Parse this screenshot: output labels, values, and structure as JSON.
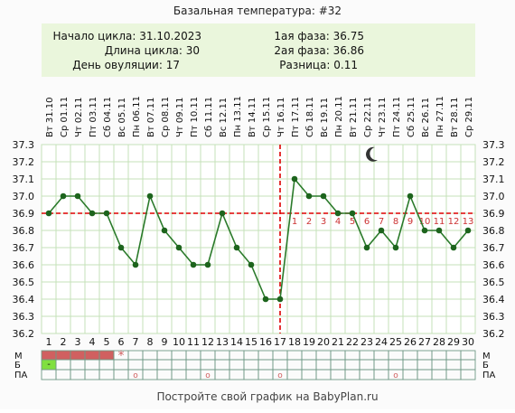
{
  "title": "Базальная температура: #32",
  "info": {
    "start_label": "Начало цикла:",
    "start_value": "31.10.2023",
    "length_label": "Длина цикла:",
    "length_value": "30",
    "ovulation_label": "День овуляции:",
    "ovulation_value": "17",
    "phase1_label": "1ая фаза:",
    "phase1_value": "36.75",
    "phase2_label": "2ая фаза:",
    "phase2_value": "36.86",
    "diff_label": "Разница:",
    "diff_value": "0.11"
  },
  "footer": "Постройте свой график на BabyPlan.ru",
  "colors": {
    "line": "#2a7a2a",
    "point": "#1d641d",
    "coverline": "#dd0000",
    "ovulation_line": "#dd0000",
    "menses": "#d06060",
    "discharge": "#80e040",
    "intercourse": "#d06060",
    "info_bg": "#eaf6dc",
    "grid": "#c4e2b8",
    "count_label": "#cc3333"
  },
  "chart_data": {
    "type": "line",
    "title": "Базальная температура: #32",
    "ylim": [
      36.2,
      37.3
    ],
    "y_ticks": [
      "37.3",
      "37.2",
      "37.1",
      "37.0",
      "36.9",
      "36.8",
      "36.7",
      "36.6",
      "36.5",
      "36.4",
      "36.3",
      "36.2"
    ],
    "days": [
      1,
      2,
      3,
      4,
      5,
      6,
      7,
      8,
      9,
      10,
      11,
      12,
      13,
      14,
      15,
      16,
      17,
      18,
      19,
      20,
      21,
      22,
      23,
      24,
      25,
      26,
      27,
      28,
      29,
      30
    ],
    "weekdays": [
      "Вт",
      "Ср",
      "Чт",
      "Пт",
      "Сб",
      "Вс",
      "Пн",
      "Вт",
      "Ср",
      "Чт",
      "Пт",
      "Сб",
      "Вс",
      "Пн",
      "Вт",
      "Ср",
      "Чт",
      "Пт",
      "Сб",
      "Вс",
      "Пн",
      "Вт",
      "Ср",
      "Чт",
      "Пт",
      "Сб",
      "Вс",
      "Пн",
      "Вт",
      "Ср"
    ],
    "dates": [
      "31.10",
      "01.11",
      "02.11",
      "03.11",
      "04.11",
      "05.11",
      "06.11",
      "07.11",
      "08.11",
      "09.11",
      "10.11",
      "11.11",
      "12.11",
      "13.11",
      "14.11",
      "15.11",
      "16.11",
      "17.11",
      "18.11",
      "19.11",
      "20.11",
      "21.11",
      "22.11",
      "23.11",
      "24.11",
      "25.11",
      "26.11",
      "27.11",
      "28.11",
      "29.11"
    ],
    "series": [
      {
        "values": [
          36.9,
          37.0,
          37.0,
          36.9,
          36.9,
          36.7,
          36.6,
          37.0,
          36.8,
          36.7,
          36.6,
          36.6,
          36.9,
          36.7,
          36.6,
          36.4,
          36.4,
          37.1,
          37.0,
          37.0,
          36.9,
          36.9,
          36.7,
          36.8,
          36.7,
          37.0,
          36.8,
          36.8,
          36.7,
          36.8
        ]
      }
    ],
    "coverline": 36.9,
    "ovulation_day": 17,
    "post_ovulation_counts": [
      "1",
      "2",
      "3",
      "4",
      "5",
      "6",
      "7",
      "8",
      "9",
      "10",
      "11",
      "12",
      "13"
    ],
    "moon_day": 23,
    "rows": {
      "labels_left": [
        "М",
        "Б",
        "ПА"
      ],
      "labels_right": [
        "М",
        "Б",
        "ПА"
      ],
      "menses_days": [
        1,
        2,
        3,
        4,
        5
      ],
      "menses_star_day": 6,
      "menses_star": "*",
      "discharge_days": [
        1
      ],
      "discharge_mark": "-",
      "intercourse_days": [
        7,
        12,
        17,
        25
      ],
      "intercourse_mark": "o"
    }
  }
}
